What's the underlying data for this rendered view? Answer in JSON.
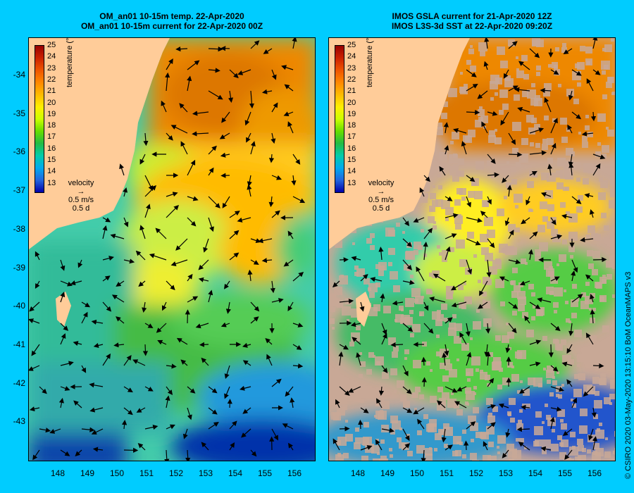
{
  "left_panel": {
    "title_line1": "OM_an01 10-15m temp. 22-Apr-2020",
    "title_line2": "OM_an01 10-15m current for 22-Apr-2020 00Z"
  },
  "right_panel": {
    "title_line1": "IMOS GSLA current for 21-Apr-2020 12Z",
    "title_line2": "IMOS L3S-3d SST at 22-Apr-2020 09:20Z"
  },
  "colorbar": {
    "ticks": [
      "25",
      "24",
      "23",
      "22",
      "21",
      "20",
      "19",
      "18",
      "17",
      "16",
      "15",
      "14",
      "13"
    ],
    "title": "temperature (°C)",
    "colors": [
      "#990000",
      "#cc2200",
      "#ee5500",
      "#ff8800",
      "#ffbb00",
      "#ffee00",
      "#ccff00",
      "#66dd00",
      "#22bb44",
      "#00ccaa",
      "#00aaee",
      "#2266dd",
      "#0000aa"
    ]
  },
  "velocity_legend": {
    "label": "velocity",
    "speed": "0.5 m/s",
    "time": "0.5 d"
  },
  "axes": {
    "lat_labels": [
      "-34",
      "-35",
      "-36",
      "-37",
      "-38",
      "-39",
      "-40",
      "-41",
      "-42",
      "-43"
    ],
    "lon_labels": [
      "148",
      "149",
      "150",
      "151",
      "152",
      "153",
      "154",
      "155",
      "156"
    ]
  },
  "colors": {
    "background": "#00ccff",
    "land": "#ffcc99",
    "no_data": "#c8a896"
  },
  "credit": "© CSIRO 2020   03-May-2020 13:15:10 BoM OceanMAPS v3"
}
